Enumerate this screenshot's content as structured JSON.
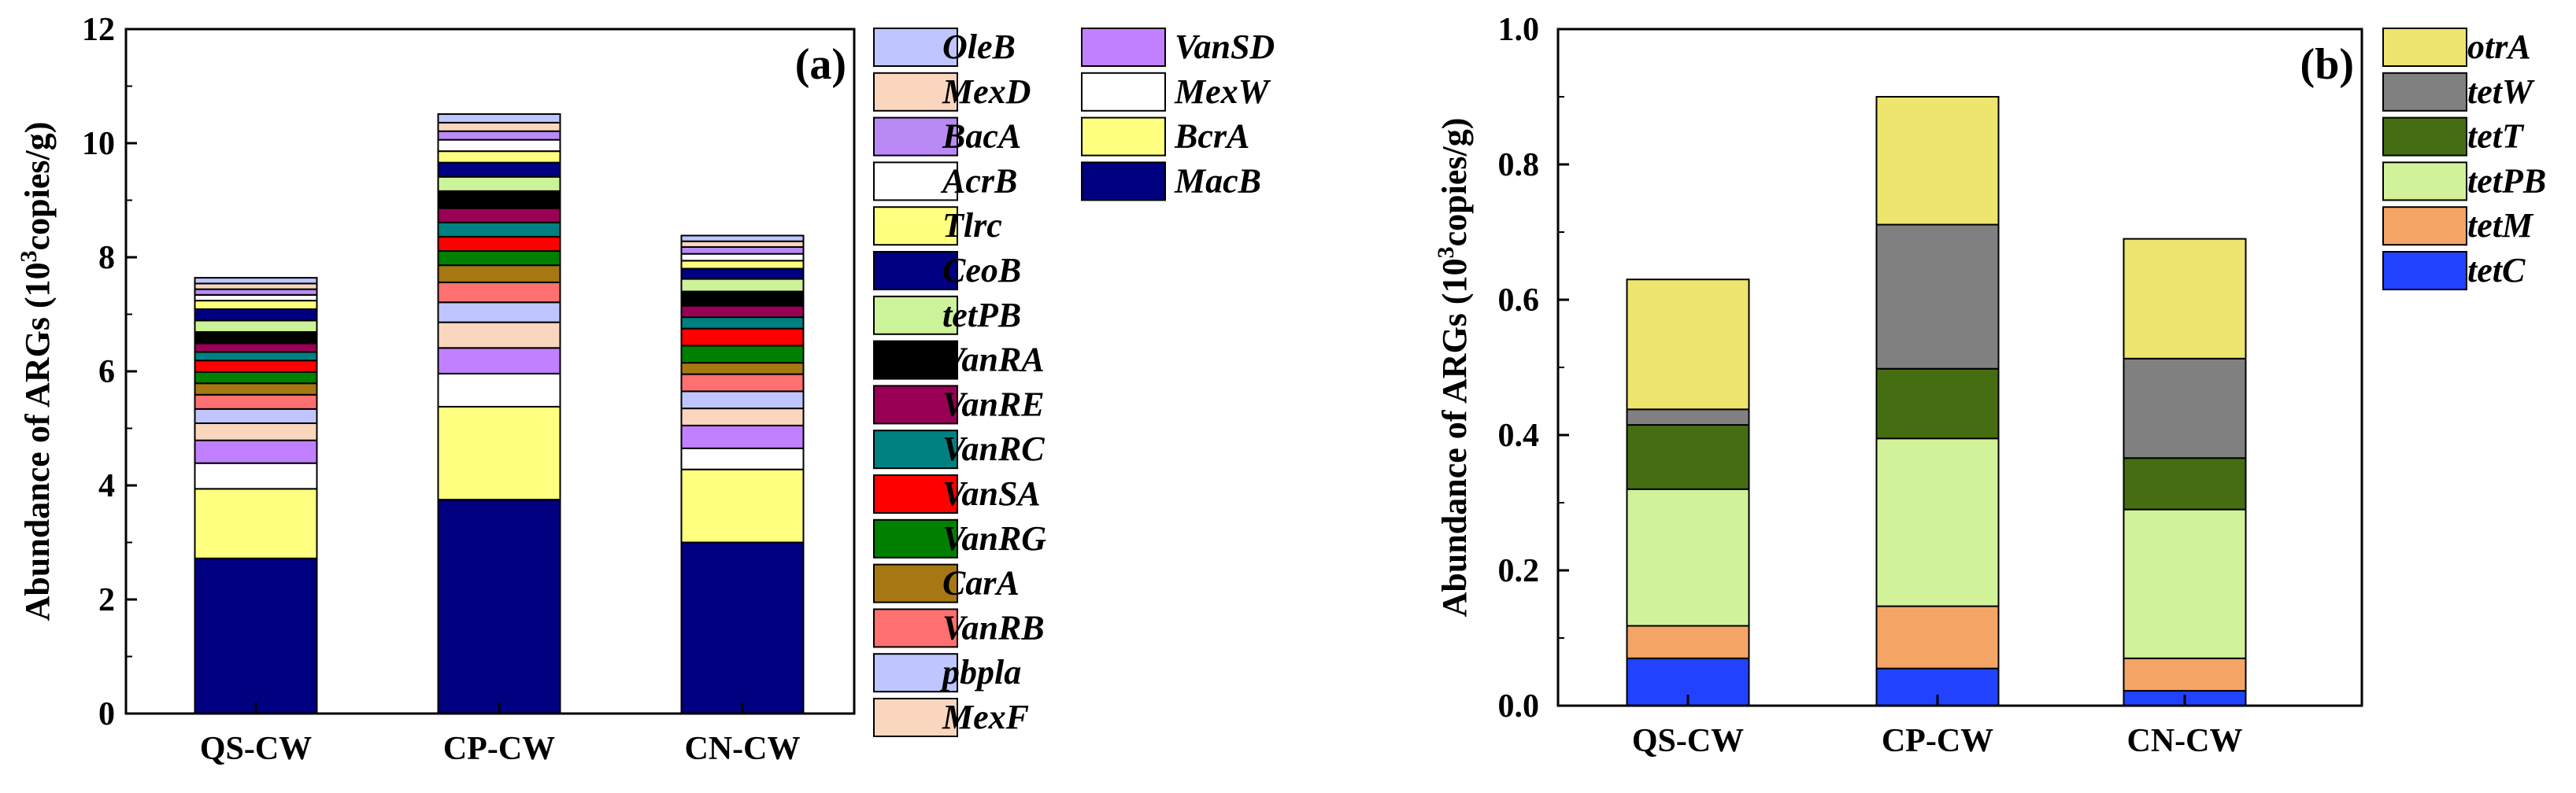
{
  "figure": {
    "panels": [
      "(a)",
      "(b)"
    ]
  },
  "chart_data": [
    {
      "type": "bar",
      "stacked": true,
      "panel_label": "(a)",
      "title": "",
      "xlabel": "",
      "ylabel": "Abundance of ARGs (10",
      "ylabel_sup": "3",
      "ylabel_tail": "copies/g)",
      "ylim": [
        0,
        12
      ],
      "yticks": [
        "0",
        "2",
        "4",
        "6",
        "8",
        "10",
        "12"
      ],
      "categories": [
        "QS-CW",
        "CP-CW",
        "CN-CW"
      ],
      "legend_position": "right",
      "series": [
        {
          "name": "MacB",
          "color": "#000080",
          "values": [
            2.72,
            3.75,
            3.0
          ]
        },
        {
          "name": "BcrA",
          "color": "#FFFF80",
          "values": [
            1.22,
            1.63,
            1.28
          ]
        },
        {
          "name": "MexW",
          "color": "#FFFFFF",
          "values": [
            0.45,
            0.58,
            0.37
          ]
        },
        {
          "name": "VanSD",
          "color": "#C080FF",
          "values": [
            0.4,
            0.45,
            0.4
          ]
        },
        {
          "name": "MexF",
          "color": "#FAD6BE",
          "values": [
            0.3,
            0.45,
            0.3
          ]
        },
        {
          "name": "pbpla",
          "color": "#BFC6FF",
          "values": [
            0.25,
            0.35,
            0.3
          ]
        },
        {
          "name": "VanRB",
          "color": "#FF7070",
          "values": [
            0.25,
            0.35,
            0.3
          ]
        },
        {
          "name": "CarA",
          "color": "#A67814",
          "values": [
            0.2,
            0.3,
            0.2
          ]
        },
        {
          "name": "VanRG",
          "color": "#008000",
          "values": [
            0.2,
            0.25,
            0.3
          ]
        },
        {
          "name": "VanSA",
          "color": "#FF0000",
          "values": [
            0.2,
            0.25,
            0.3
          ]
        },
        {
          "name": "VanRC",
          "color": "#008080",
          "values": [
            0.15,
            0.25,
            0.2
          ]
        },
        {
          "name": "VanRE",
          "color": "#990055",
          "values": [
            0.15,
            0.25,
            0.2
          ]
        },
        {
          "name": "VanRA",
          "color": "#000000",
          "values": [
            0.2,
            0.3,
            0.25
          ]
        },
        {
          "name": "tetPB",
          "color": "#CCF29A",
          "values": [
            0.2,
            0.25,
            0.22
          ]
        },
        {
          "name": "CeoB",
          "color": "#000080",
          "values": [
            0.2,
            0.25,
            0.18
          ]
        },
        {
          "name": "Tlrc",
          "color": "#FFFF80",
          "values": [
            0.15,
            0.2,
            0.14
          ]
        },
        {
          "name": "AcrB",
          "color": "#FFFFFF",
          "values": [
            0.1,
            0.2,
            0.12
          ]
        },
        {
          "name": "BacA",
          "color": "#B98AF5",
          "values": [
            0.1,
            0.15,
            0.12
          ]
        },
        {
          "name": "MexD",
          "color": "#FAD6BE",
          "values": [
            0.1,
            0.15,
            0.1
          ]
        },
        {
          "name": "OleB",
          "color": "#BFC6FF",
          "values": [
            0.1,
            0.15,
            0.1
          ]
        }
      ],
      "legend": [
        [
          "OleB",
          "VanSD"
        ],
        [
          "MexD",
          "MexW"
        ],
        [
          "BacA",
          "BcrA"
        ],
        [
          "AcrB",
          "MacB"
        ],
        [
          "Tlrc"
        ],
        [
          "CeoB"
        ],
        [
          "tetPB"
        ],
        [
          "VanRA"
        ],
        [
          "VanRE"
        ],
        [
          "VanRC"
        ],
        [
          "VanSA"
        ],
        [
          "VanRG"
        ],
        [
          "CarA"
        ],
        [
          "VanRB"
        ],
        [
          "pbpla"
        ],
        [
          "MexF"
        ]
      ]
    },
    {
      "type": "bar",
      "stacked": true,
      "panel_label": "(b)",
      "title": "",
      "xlabel": "",
      "ylabel": "Abundance of ARGs (10",
      "ylabel_sup": "3",
      "ylabel_tail": "copies/g)",
      "ylim": [
        0,
        1.0
      ],
      "yticks": [
        "0.0",
        "0.2",
        "0.4",
        "0.6",
        "0.8",
        "1.0"
      ],
      "categories": [
        "QS-CW",
        "CP-CW",
        "CN-CW"
      ],
      "legend_position": "right",
      "series": [
        {
          "name": "tetC",
          "color": "#2142FF",
          "values": [
            0.07,
            0.055,
            0.022
          ]
        },
        {
          "name": "tetM",
          "color": "#F4A465",
          "values": [
            0.048,
            0.092,
            0.048
          ]
        },
        {
          "name": "tetPB",
          "color": "#D2F29A",
          "values": [
            0.202,
            0.248,
            0.22
          ]
        },
        {
          "name": "tetT",
          "color": "#456E13",
          "values": [
            0.095,
            0.103,
            0.076
          ]
        },
        {
          "name": "tetW",
          "color": "#808080",
          "values": [
            0.023,
            0.213,
            0.147
          ]
        },
        {
          "name": "otrA",
          "color": "#EDE56E",
          "values": [
            0.192,
            0.189,
            0.177
          ]
        }
      ],
      "legend": [
        "otrA",
        "tetW",
        "tetT",
        "tetPB",
        "tetM",
        "tetC"
      ]
    }
  ]
}
